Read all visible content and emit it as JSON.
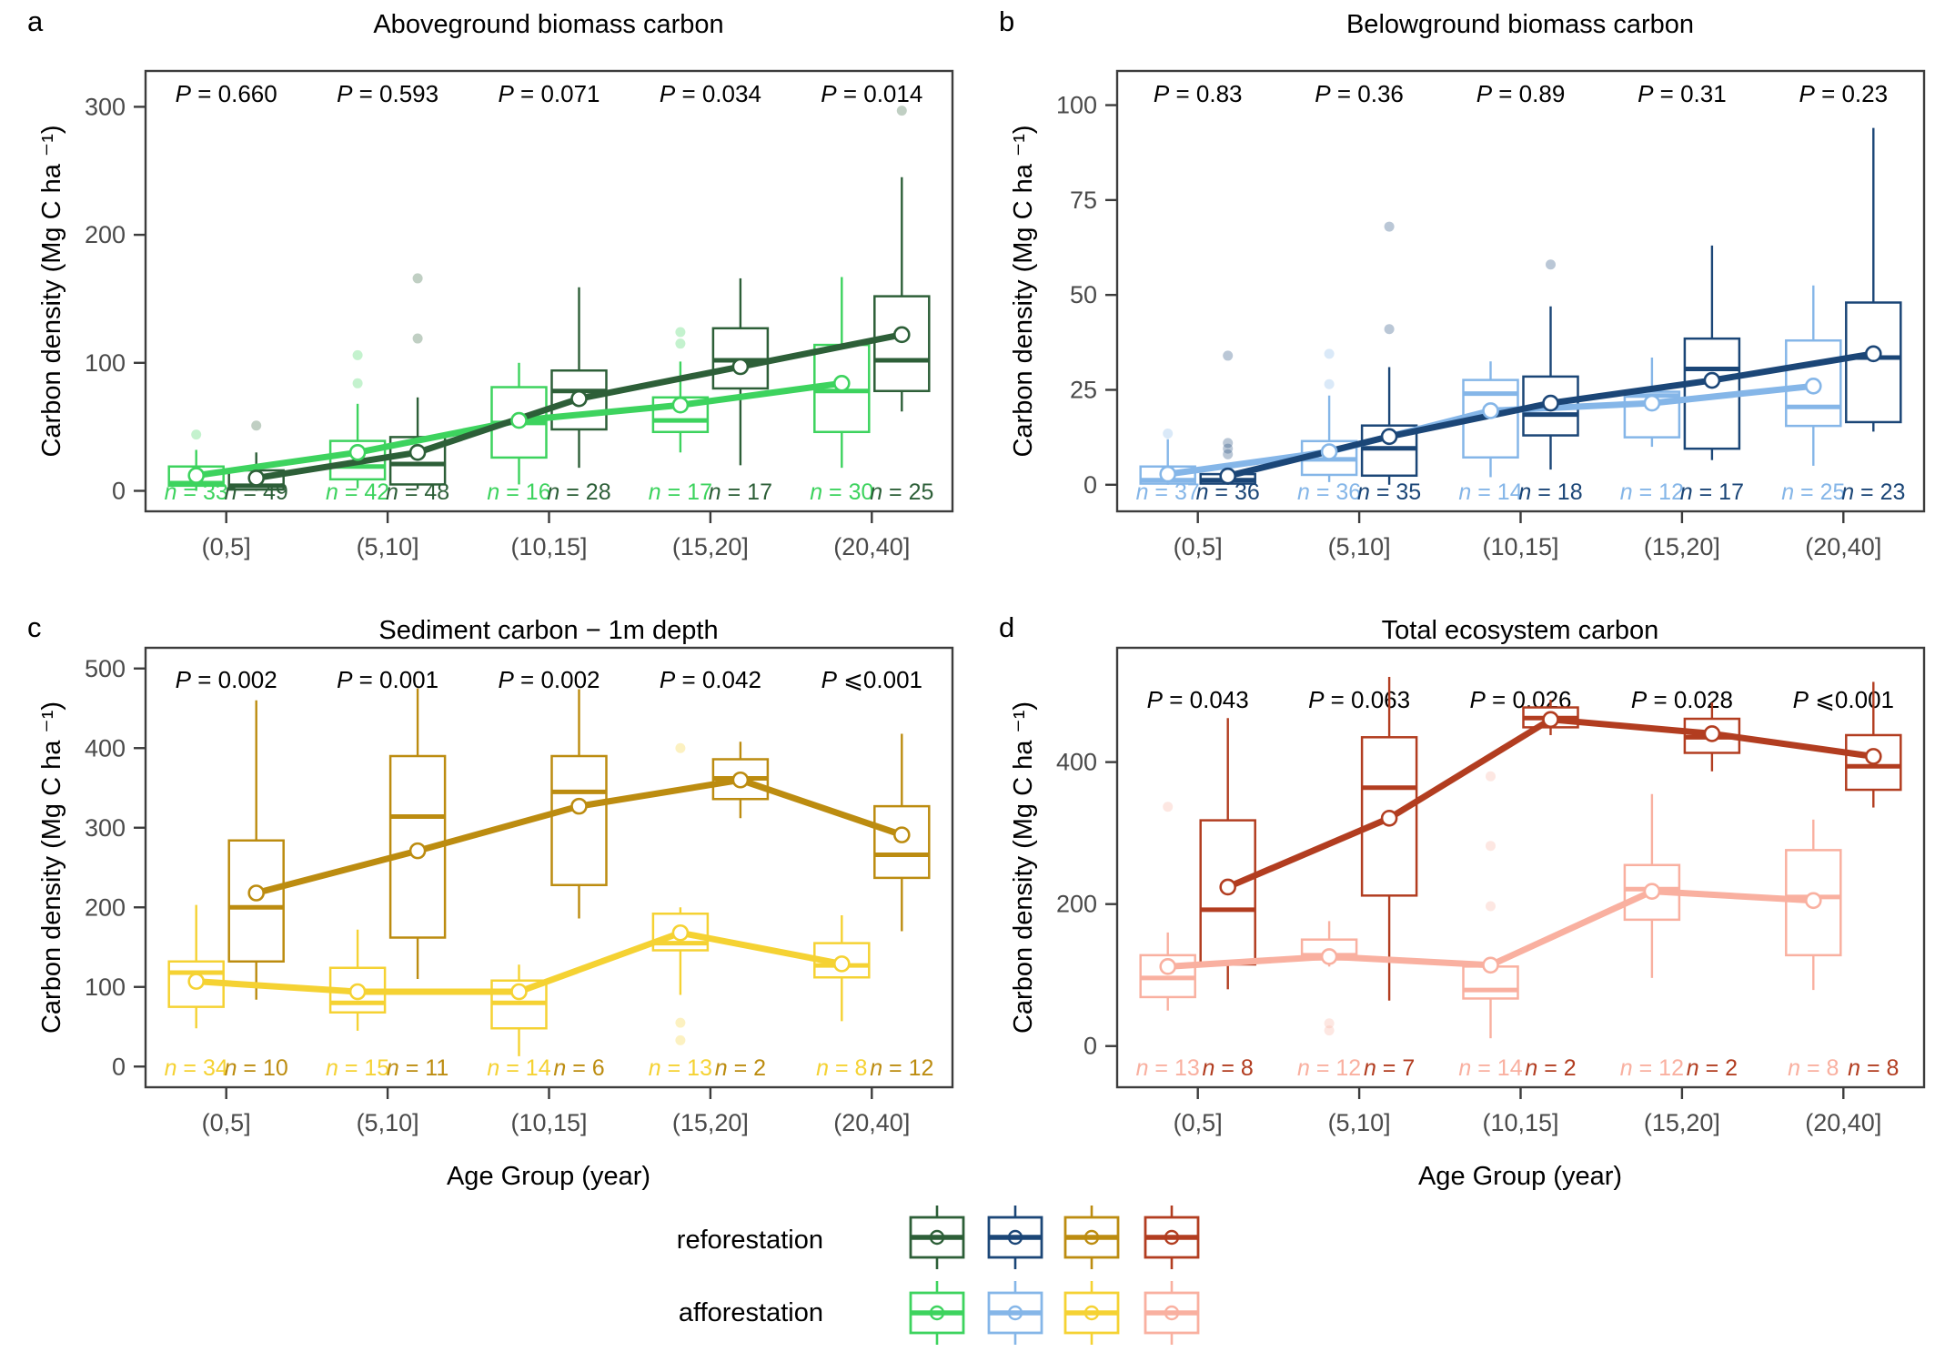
{
  "figure": {
    "background": "#ffffff",
    "legend": {
      "rows": [
        {
          "label": "reforestation",
          "colors": [
            "#2d5f38",
            "#1b4677",
            "#bc8c10",
            "#b23d20"
          ]
        },
        {
          "label": "afforestation",
          "colors": [
            "#3dd35e",
            "#85b6e8",
            "#f5d233",
            "#f9b0a0"
          ]
        }
      ]
    }
  },
  "chart_data": {
    "type": "boxplot-multipanel",
    "categories": [
      "(0,5]",
      "(5,10]",
      "(10,15]",
      "(15,20]",
      "(20,40]"
    ],
    "xlabel": "Age Group (year)",
    "ylabel": "Carbon density (Mg C ha ⁻¹)",
    "legend_position": "bottom-center",
    "grid": false,
    "panels": [
      {
        "letter": "a",
        "title": "Aboveground biomass carbon",
        "ylim": [
          -16,
          328
        ],
        "yticks": [
          0,
          100,
          200,
          300
        ],
        "p_values": [
          "P = 0.660",
          "P = 0.593",
          "P = 0.071",
          "P = 0.034",
          "P = 0.014"
        ],
        "series": [
          {
            "name": "afforestation",
            "color": "#3dd35e",
            "n": [
              33,
              42,
              16,
              17,
              30
            ],
            "boxes": [
              {
                "lo": 0,
                "q1": 4,
                "med": 6,
                "q3": 19,
                "hi": 32,
                "mean": 12,
                "fliers": [
                  44
                ]
              },
              {
                "lo": 2,
                "q1": 9,
                "med": 19,
                "q3": 39,
                "hi": 68,
                "mean": 30,
                "fliers": [
                  84,
                  106
                ]
              },
              {
                "lo": 5,
                "q1": 26,
                "med": 53,
                "q3": 81,
                "hi": 100,
                "mean": 55,
                "fliers": []
              },
              {
                "lo": 30,
                "q1": 46,
                "med": 55,
                "q3": 73,
                "hi": 101,
                "mean": 67,
                "fliers": [
                  115,
                  124
                ]
              },
              {
                "lo": 18,
                "q1": 46,
                "med": 78,
                "q3": 114,
                "hi": 167,
                "mean": 84,
                "fliers": []
              }
            ]
          },
          {
            "name": "reforestation",
            "color": "#2d5f38",
            "n": [
              49,
              48,
              28,
              17,
              25
            ],
            "boxes": [
              {
                "lo": 0,
                "q1": 1,
                "med": 4,
                "q3": 16,
                "hi": 30,
                "mean": 10,
                "fliers": [
                  51
                ]
              },
              {
                "lo": 1.5,
                "q1": 5,
                "med": 21,
                "q3": 42,
                "hi": 73,
                "mean": 30,
                "fliers": [
                  119,
                  166
                ]
              },
              {
                "lo": 18,
                "q1": 48,
                "med": 78,
                "q3": 94,
                "hi": 159,
                "mean": 72,
                "fliers": []
              },
              {
                "lo": 20,
                "q1": 80,
                "med": 102,
                "q3": 127,
                "hi": 166,
                "mean": 97,
                "fliers": []
              },
              {
                "lo": 62,
                "q1": 78,
                "med": 102,
                "q3": 152,
                "hi": 245,
                "mean": 122,
                "fliers": [
                  297
                ]
              }
            ]
          }
        ]
      },
      {
        "letter": "b",
        "title": "Belowground biomass carbon",
        "ylim": [
          -7,
          109
        ],
        "yticks": [
          0,
          25,
          50,
          75,
          100
        ],
        "p_values": [
          "P = 0.83",
          "P = 0.36",
          "P = 0.89",
          "P = 0.31",
          "P = 0.23"
        ],
        "series": [
          {
            "name": "afforestation",
            "color": "#85b6e8",
            "n": [
              37,
              36,
              14,
              12,
              25
            ],
            "boxes": [
              {
                "lo": 0,
                "q1": 0.3,
                "med": 1.2,
                "q3": 4.8,
                "hi": 12,
                "mean": 2.8,
                "fliers": [
                  13.5
                ]
              },
              {
                "lo": 0.7,
                "q1": 2.6,
                "med": 6.7,
                "q3": 11.5,
                "hi": 23.5,
                "mean": 8.7,
                "fliers": [
                  26.5,
                  34.5
                ]
              },
              {
                "lo": 2,
                "q1": 7.2,
                "med": 24,
                "q3": 27.6,
                "hi": 32.5,
                "mean": 19.5,
                "fliers": []
              },
              {
                "lo": 10,
                "q1": 12.5,
                "med": 23.5,
                "q3": 24.5,
                "hi": 33.5,
                "mean": 21.5,
                "fliers": []
              },
              {
                "lo": 5,
                "q1": 15.5,
                "med": 20.5,
                "q3": 38,
                "hi": 52.5,
                "mean": 26,
                "fliers": []
              }
            ]
          },
          {
            "name": "reforestation",
            "color": "#1b4677",
            "n": [
              36,
              35,
              18,
              17,
              23
            ],
            "boxes": [
              {
                "lo": 0,
                "q1": 0.3,
                "med": 1.2,
                "q3": 2.8,
                "hi": 5.5,
                "mean": 2.3,
                "fliers": [
                  8,
                  9.5,
                  11,
                  34
                ]
              },
              {
                "lo": 0,
                "q1": 2.4,
                "med": 9.6,
                "q3": 15.6,
                "hi": 31,
                "mean": 12.7,
                "fliers": [
                  41,
                  68
                ]
              },
              {
                "lo": 4,
                "q1": 13,
                "med": 18.5,
                "q3": 28.5,
                "hi": 47,
                "mean": 21.5,
                "fliers": [
                  58
                ]
              },
              {
                "lo": 6.5,
                "q1": 9.5,
                "med": 30.5,
                "q3": 38.5,
                "hi": 63,
                "mean": 27.5,
                "fliers": []
              },
              {
                "lo": 14,
                "q1": 16.5,
                "med": 33.5,
                "q3": 48,
                "hi": 94,
                "mean": 34.5,
                "fliers": []
              }
            ]
          }
        ]
      },
      {
        "letter": "c",
        "title": "Sediment carbon − 1m depth",
        "ylim": [
          -26,
          526
        ],
        "yticks": [
          0,
          100,
          200,
          300,
          400,
          500
        ],
        "p_values": [
          "P = 0.002",
          "P = 0.001",
          "P = 0.002",
          "P = 0.042",
          "P ⩽0.001"
        ],
        "series": [
          {
            "name": "afforestation",
            "color": "#f5d233",
            "n": [
              34,
              15,
              14,
              13,
              8
            ],
            "boxes": [
              {
                "lo": 48,
                "q1": 75,
                "med": 118,
                "q3": 132,
                "hi": 203,
                "mean": 107,
                "fliers": []
              },
              {
                "lo": 45,
                "q1": 68,
                "med": 80,
                "q3": 124,
                "hi": 172,
                "mean": 94,
                "fliers": []
              },
              {
                "lo": 13,
                "q1": 48,
                "med": 80,
                "q3": 108,
                "hi": 128,
                "mean": 94,
                "fliers": []
              },
              {
                "lo": 90,
                "q1": 146,
                "med": 155,
                "q3": 192,
                "hi": 200,
                "mean": 168,
                "fliers": [
                  400,
                  55,
                  33
                ]
              },
              {
                "lo": 57,
                "q1": 112,
                "med": 127,
                "q3": 155,
                "hi": 190,
                "mean": 129,
                "fliers": []
              }
            ]
          },
          {
            "name": "reforestation",
            "color": "#bc8c10",
            "n": [
              10,
              11,
              6,
              2,
              12
            ],
            "boxes": [
              {
                "lo": 84,
                "q1": 132,
                "med": 200,
                "q3": 284,
                "hi": 460,
                "mean": 218,
                "fliers": []
              },
              {
                "lo": 110,
                "q1": 162,
                "med": 314,
                "q3": 390,
                "hi": 475,
                "mean": 271,
                "fliers": []
              },
              {
                "lo": 186,
                "q1": 228,
                "med": 345,
                "q3": 390,
                "hi": 474,
                "mean": 327,
                "fliers": []
              },
              {
                "lo": 312,
                "q1": 336,
                "med": 362,
                "q3": 386,
                "hi": 408,
                "mean": 360,
                "fliers": []
              },
              {
                "lo": 170,
                "q1": 237,
                "med": 266,
                "q3": 327,
                "hi": 418,
                "mean": 291,
                "fliers": []
              }
            ]
          }
        ]
      },
      {
        "letter": "d",
        "title": "Total ecosystem carbon",
        "ylim": [
          -58,
          561
        ],
        "yticks": [
          0,
          200,
          400
        ],
        "p_values": [
          "P = 0.043",
          "P = 0.063",
          "P = 0.026",
          "P = 0.028",
          "P ⩽0.001"
        ],
        "series": [
          {
            "name": "afforestation",
            "color": "#f9b0a0",
            "n": [
              13,
              12,
              14,
              12,
              8
            ],
            "boxes": [
              {
                "lo": 50,
                "q1": 69,
                "med": 96,
                "q3": 128,
                "hi": 160,
                "mean": 112,
                "fliers": [
                  337
                ]
              },
              {
                "lo": 112,
                "q1": 122,
                "med": 128,
                "q3": 150,
                "hi": 176,
                "mean": 126,
                "fliers": [
                  32,
                  22
                ]
              },
              {
                "lo": 11,
                "q1": 67,
                "med": 79,
                "q3": 112,
                "hi": 112,
                "mean": 114,
                "fliers": [
                  380,
                  282,
                  197
                ]
              },
              {
                "lo": 96,
                "q1": 178,
                "med": 221,
                "q3": 255,
                "hi": 355,
                "mean": 218,
                "fliers": []
              },
              {
                "lo": 79,
                "q1": 128,
                "med": 210,
                "q3": 276,
                "hi": 319,
                "mean": 205,
                "fliers": []
              }
            ]
          },
          {
            "name": "reforestation",
            "color": "#b23d20",
            "n": [
              8,
              7,
              2,
              2,
              8
            ],
            "boxes": [
              {
                "lo": 80,
                "q1": 115,
                "med": 192,
                "q3": 318,
                "hi": 462,
                "mean": 224,
                "fliers": []
              },
              {
                "lo": 64,
                "q1": 212,
                "med": 364,
                "q3": 435,
                "hi": 520,
                "mean": 321,
                "fliers": []
              },
              {
                "lo": 438,
                "q1": 449,
                "med": 462,
                "q3": 477,
                "hi": 488,
                "mean": 460,
                "fliers": []
              },
              {
                "lo": 387,
                "q1": 413,
                "med": 435,
                "q3": 461,
                "hi": 484,
                "mean": 440,
                "fliers": []
              },
              {
                "lo": 336,
                "q1": 361,
                "med": 394,
                "q3": 438,
                "hi": 513,
                "mean": 408,
                "fliers": []
              }
            ]
          }
        ]
      }
    ]
  }
}
